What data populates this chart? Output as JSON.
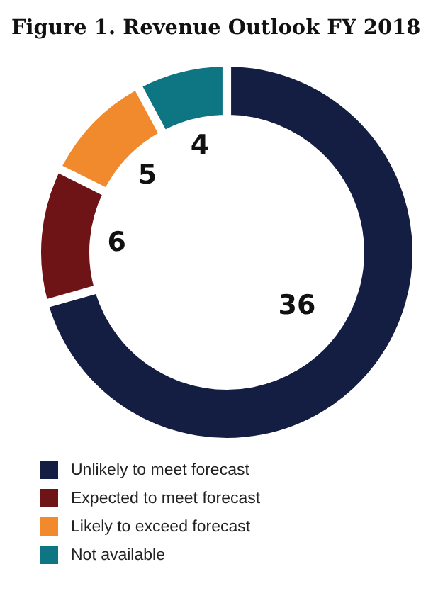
{
  "chart_data": {
    "type": "donut",
    "title": "Figure 1. Revenue Outlook FY 2018",
    "categories": [
      "Unlikely to meet forecast",
      "Expected to meet forecast",
      "Likely to exceed forecast",
      "Not available"
    ],
    "values": [
      36,
      6,
      5,
      4
    ],
    "colors": [
      "#141e42",
      "#6e1416",
      "#f18a2c",
      "#0e7582"
    ],
    "data_labels": true,
    "legend": "bottom"
  }
}
